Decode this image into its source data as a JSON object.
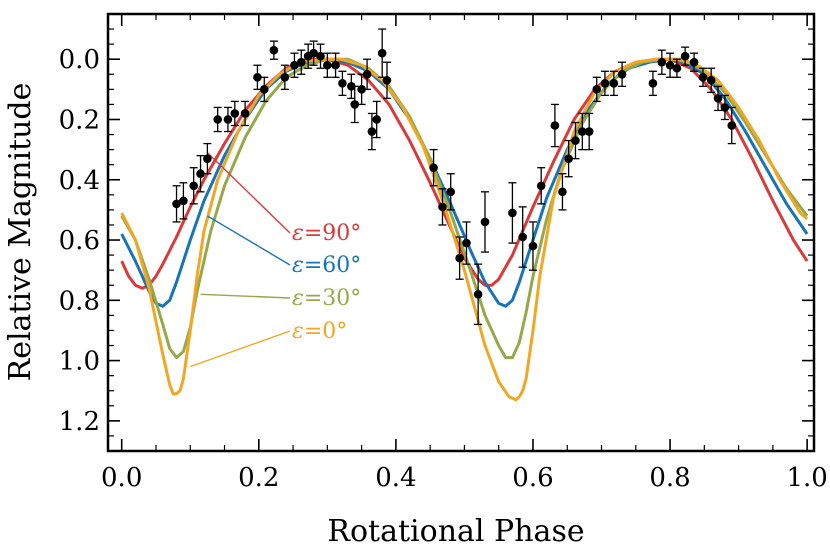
{
  "chart_data": {
    "type": "line",
    "xlabel": "Rotational Phase",
    "ylabel": "Relative Magnitude",
    "xlim": [
      -0.02,
      1.01
    ],
    "ylim": [
      1.3,
      -0.15
    ],
    "y_inverted": true,
    "grid": false,
    "x_ticks": [
      0.0,
      0.2,
      0.4,
      0.6,
      0.8,
      1.0
    ],
    "x_tick_labels": [
      "0.0",
      "0.2",
      "0.4",
      "0.6",
      "0.8",
      "1.0"
    ],
    "y_ticks": [
      0.0,
      0.2,
      0.4,
      0.6,
      0.8,
      1.0,
      1.2
    ],
    "y_tick_labels": [
      "0.0",
      "0.2",
      "0.4",
      "0.6",
      "0.8",
      "1.0",
      "1.2"
    ],
    "series": [
      {
        "name": "ε=90°",
        "color": "#d93a3a",
        "x": [
          0.0,
          0.01,
          0.02,
          0.03,
          0.04,
          0.05,
          0.06,
          0.08,
          0.1,
          0.12,
          0.15,
          0.18,
          0.21,
          0.24,
          0.27,
          0.3,
          0.33,
          0.36,
          0.39,
          0.42,
          0.45,
          0.48,
          0.5,
          0.52,
          0.53,
          0.54,
          0.55,
          0.57,
          0.6,
          0.63,
          0.66,
          0.69,
          0.72,
          0.75,
          0.78,
          0.8,
          0.83,
          0.86,
          0.89,
          0.92,
          0.95,
          0.98,
          1.0
        ],
        "y": [
          0.67,
          0.72,
          0.75,
          0.76,
          0.75,
          0.72,
          0.68,
          0.59,
          0.49,
          0.4,
          0.28,
          0.17,
          0.09,
          0.03,
          0.0,
          0.0,
          0.02,
          0.07,
          0.15,
          0.27,
          0.41,
          0.56,
          0.66,
          0.73,
          0.75,
          0.75,
          0.73,
          0.65,
          0.49,
          0.34,
          0.2,
          0.1,
          0.04,
          0.01,
          0.0,
          0.0,
          0.03,
          0.1,
          0.2,
          0.33,
          0.47,
          0.6,
          0.67
        ]
      },
      {
        "name": "ε=60°",
        "color": "#1874b8",
        "x": [
          0.0,
          0.02,
          0.04,
          0.05,
          0.06,
          0.07,
          0.08,
          0.1,
          0.12,
          0.15,
          0.18,
          0.21,
          0.24,
          0.27,
          0.3,
          0.33,
          0.36,
          0.39,
          0.42,
          0.45,
          0.48,
          0.51,
          0.53,
          0.55,
          0.56,
          0.57,
          0.58,
          0.6,
          0.62,
          0.65,
          0.68,
          0.71,
          0.74,
          0.77,
          0.8,
          0.82,
          0.85,
          0.88,
          0.91,
          0.94,
          0.97,
          1.0
        ],
        "y": [
          0.58,
          0.67,
          0.77,
          0.81,
          0.82,
          0.8,
          0.74,
          0.6,
          0.47,
          0.32,
          0.2,
          0.1,
          0.04,
          0.01,
          0.0,
          0.01,
          0.04,
          0.1,
          0.2,
          0.33,
          0.48,
          0.64,
          0.74,
          0.81,
          0.82,
          0.8,
          0.74,
          0.6,
          0.46,
          0.3,
          0.17,
          0.08,
          0.03,
          0.01,
          0.0,
          0.01,
          0.05,
          0.13,
          0.24,
          0.36,
          0.48,
          0.58
        ]
      },
      {
        "name": "ε=30°",
        "color": "#96a84a",
        "x": [
          0.0,
          0.02,
          0.04,
          0.06,
          0.07,
          0.08,
          0.09,
          0.1,
          0.11,
          0.13,
          0.15,
          0.18,
          0.21,
          0.24,
          0.27,
          0.3,
          0.33,
          0.36,
          0.39,
          0.42,
          0.45,
          0.48,
          0.51,
          0.53,
          0.55,
          0.56,
          0.57,
          0.58,
          0.59,
          0.6,
          0.62,
          0.64,
          0.67,
          0.7,
          0.73,
          0.76,
          0.79,
          0.82,
          0.85,
          0.88,
          0.91,
          0.94,
          0.97,
          1.0
        ],
        "y": [
          0.52,
          0.6,
          0.73,
          0.88,
          0.96,
          0.99,
          0.97,
          0.89,
          0.77,
          0.57,
          0.42,
          0.26,
          0.14,
          0.06,
          0.02,
          0.0,
          0.0,
          0.03,
          0.09,
          0.19,
          0.33,
          0.51,
          0.71,
          0.85,
          0.95,
          0.99,
          0.99,
          0.94,
          0.84,
          0.72,
          0.53,
          0.38,
          0.22,
          0.11,
          0.04,
          0.01,
          0.0,
          0.0,
          0.04,
          0.11,
          0.21,
          0.32,
          0.43,
          0.52
        ]
      },
      {
        "name": "ε=0°",
        "color": "#f0a726",
        "x": [
          0.0,
          0.02,
          0.04,
          0.06,
          0.07,
          0.075,
          0.08,
          0.085,
          0.09,
          0.1,
          0.11,
          0.12,
          0.14,
          0.17,
          0.2,
          0.23,
          0.26,
          0.29,
          0.32,
          0.35,
          0.38,
          0.41,
          0.44,
          0.47,
          0.5,
          0.53,
          0.55,
          0.565,
          0.575,
          0.58,
          0.585,
          0.59,
          0.6,
          0.61,
          0.63,
          0.66,
          0.69,
          0.72,
          0.75,
          0.78,
          0.81,
          0.84,
          0.87,
          0.9,
          0.93,
          0.96,
          0.99,
          1.0
        ],
        "y": [
          0.51,
          0.6,
          0.76,
          0.98,
          1.08,
          1.11,
          1.11,
          1.1,
          1.06,
          0.9,
          0.72,
          0.57,
          0.4,
          0.24,
          0.12,
          0.05,
          0.01,
          0.0,
          0.0,
          0.02,
          0.07,
          0.16,
          0.29,
          0.48,
          0.7,
          0.95,
          1.07,
          1.12,
          1.13,
          1.12,
          1.1,
          1.06,
          0.9,
          0.72,
          0.46,
          0.24,
          0.11,
          0.04,
          0.01,
          0.0,
          0.0,
          0.02,
          0.07,
          0.16,
          0.27,
          0.4,
          0.51,
          0.53
        ]
      }
    ],
    "observations": {
      "name": "observed",
      "color": "#000000",
      "points": [
        {
          "x": 0.08,
          "y": 0.48,
          "err": 0.06
        },
        {
          "x": 0.09,
          "y": 0.47,
          "err": 0.06
        },
        {
          "x": 0.105,
          "y": 0.42,
          "err": 0.06
        },
        {
          "x": 0.115,
          "y": 0.38,
          "err": 0.06
        },
        {
          "x": 0.125,
          "y": 0.33,
          "err": 0.05
        },
        {
          "x": 0.14,
          "y": 0.2,
          "err": 0.04
        },
        {
          "x": 0.155,
          "y": 0.2,
          "err": 0.04
        },
        {
          "x": 0.165,
          "y": 0.18,
          "err": 0.04
        },
        {
          "x": 0.18,
          "y": 0.18,
          "err": 0.04
        },
        {
          "x": 0.198,
          "y": 0.06,
          "err": 0.04
        },
        {
          "x": 0.208,
          "y": 0.1,
          "err": 0.04
        },
        {
          "x": 0.222,
          "y": -0.03,
          "err": 0.03
        },
        {
          "x": 0.238,
          "y": 0.06,
          "err": 0.04
        },
        {
          "x": 0.252,
          "y": 0.02,
          "err": 0.04
        },
        {
          "x": 0.262,
          "y": 0.01,
          "err": 0.04
        },
        {
          "x": 0.272,
          "y": -0.01,
          "err": 0.04
        },
        {
          "x": 0.28,
          "y": -0.02,
          "err": 0.04
        },
        {
          "x": 0.29,
          "y": -0.01,
          "err": 0.04
        },
        {
          "x": 0.3,
          "y": 0.02,
          "err": 0.04
        },
        {
          "x": 0.312,
          "y": 0.02,
          "err": 0.04
        },
        {
          "x": 0.322,
          "y": 0.08,
          "err": 0.04
        },
        {
          "x": 0.335,
          "y": 0.09,
          "err": 0.04
        },
        {
          "x": 0.34,
          "y": 0.15,
          "err": 0.06
        },
        {
          "x": 0.35,
          "y": 0.1,
          "err": 0.05
        },
        {
          "x": 0.358,
          "y": 0.05,
          "err": 0.05
        },
        {
          "x": 0.365,
          "y": 0.24,
          "err": 0.06
        },
        {
          "x": 0.372,
          "y": 0.2,
          "err": 0.06
        },
        {
          "x": 0.38,
          "y": -0.02,
          "err": 0.08
        },
        {
          "x": 0.387,
          "y": 0.07,
          "err": 0.06
        },
        {
          "x": 0.455,
          "y": 0.36,
          "err": 0.06
        },
        {
          "x": 0.468,
          "y": 0.49,
          "err": 0.06
        },
        {
          "x": 0.48,
          "y": 0.44,
          "err": 0.06
        },
        {
          "x": 0.493,
          "y": 0.66,
          "err": 0.07
        },
        {
          "x": 0.503,
          "y": 0.61,
          "err": 0.07
        },
        {
          "x": 0.52,
          "y": 0.78,
          "err": 0.1
        },
        {
          "x": 0.53,
          "y": 0.54,
          "err": 0.1
        },
        {
          "x": 0.57,
          "y": 0.51,
          "err": 0.1
        },
        {
          "x": 0.585,
          "y": 0.59,
          "err": 0.1
        },
        {
          "x": 0.6,
          "y": 0.62,
          "err": 0.08
        },
        {
          "x": 0.612,
          "y": 0.42,
          "err": 0.06
        },
        {
          "x": 0.632,
          "y": 0.22,
          "err": 0.07
        },
        {
          "x": 0.643,
          "y": 0.44,
          "err": 0.06
        },
        {
          "x": 0.652,
          "y": 0.33,
          "err": 0.06
        },
        {
          "x": 0.662,
          "y": 0.27,
          "err": 0.06
        },
        {
          "x": 0.672,
          "y": 0.24,
          "err": 0.06
        },
        {
          "x": 0.682,
          "y": 0.24,
          "err": 0.06
        },
        {
          "x": 0.693,
          "y": 0.1,
          "err": 0.04
        },
        {
          "x": 0.705,
          "y": 0.08,
          "err": 0.04
        },
        {
          "x": 0.718,
          "y": 0.08,
          "err": 0.04
        },
        {
          "x": 0.73,
          "y": 0.05,
          "err": 0.04
        },
        {
          "x": 0.775,
          "y": 0.08,
          "err": 0.04
        },
        {
          "x": 0.788,
          "y": 0.01,
          "err": 0.04
        },
        {
          "x": 0.8,
          "y": 0.02,
          "err": 0.04
        },
        {
          "x": 0.81,
          "y": 0.03,
          "err": 0.03
        },
        {
          "x": 0.822,
          "y": -0.01,
          "err": 0.03
        },
        {
          "x": 0.835,
          "y": 0.01,
          "err": 0.03
        },
        {
          "x": 0.848,
          "y": 0.06,
          "err": 0.03
        },
        {
          "x": 0.86,
          "y": 0.07,
          "err": 0.04
        },
        {
          "x": 0.87,
          "y": 0.13,
          "err": 0.04
        },
        {
          "x": 0.88,
          "y": 0.16,
          "err": 0.04
        },
        {
          "x": 0.89,
          "y": 0.22,
          "err": 0.06
        }
      ]
    },
    "annotations": [
      {
        "text_var": "ε",
        "text_rest": "=90°",
        "series_index": 0
      },
      {
        "text_var": "ε",
        "text_rest": "=60°",
        "series_index": 1
      },
      {
        "text_var": "ε",
        "text_rest": "=30°",
        "series_index": 2
      },
      {
        "text_var": "ε",
        "text_rest": "=0°",
        "series_index": 3
      }
    ]
  }
}
